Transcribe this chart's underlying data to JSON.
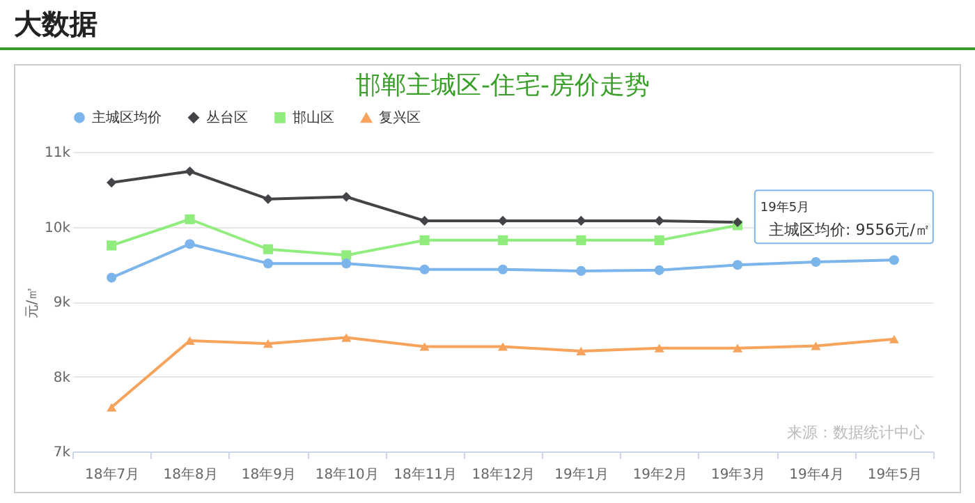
{
  "chart_data": {
    "type": "line",
    "title": "邯郸主城区-住宅-房价走势",
    "ylabel": "元/㎡",
    "categories": [
      "18年7月",
      "18年8月",
      "18年9月",
      "18年10月",
      "18年11月",
      "18年12月",
      "19年1月",
      "19年2月",
      "19年3月",
      "19年4月",
      "19年5月"
    ],
    "series": [
      {
        "name": "主城区均价",
        "color": "#7cb5ec",
        "marker": "circle",
        "values": [
          9320,
          9770,
          9510,
          9510,
          9430,
          9430,
          9410,
          9420,
          9490,
          9530,
          9556
        ]
      },
      {
        "name": "丛台区",
        "color": "#434348",
        "marker": "diamond",
        "values": [
          10590,
          10740,
          10370,
          10400,
          10080,
          10080,
          10080,
          10080,
          10060,
          null,
          null
        ]
      },
      {
        "name": "邯山区",
        "color": "#90ed7d",
        "marker": "square",
        "values": [
          9750,
          10100,
          9700,
          9620,
          9820,
          9820,
          9820,
          9820,
          10020,
          null,
          null
        ]
      },
      {
        "name": "复兴区",
        "color": "#f7a35c",
        "marker": "triangle",
        "values": [
          7590,
          8480,
          8440,
          8520,
          8400,
          8400,
          8340,
          8380,
          8380,
          8410,
          8500
        ]
      }
    ],
    "ylim": [
      7000,
      11000
    ],
    "yticks": [
      {
        "value": 7000,
        "label": "7k"
      },
      {
        "value": 8000,
        "label": "8k"
      },
      {
        "value": 9000,
        "label": "9k"
      },
      {
        "value": 10000,
        "label": "10k"
      },
      {
        "value": 11000,
        "label": "11k"
      }
    ],
    "grid": "y",
    "legend": "top",
    "annotations": [
      "大数据",
      "19年5月",
      {
        "text": "主城区均价: 9556元/㎡",
        "x": "19年5月",
        "y": 9556
      },
      "来源：数据统计中心"
    ]
  }
}
